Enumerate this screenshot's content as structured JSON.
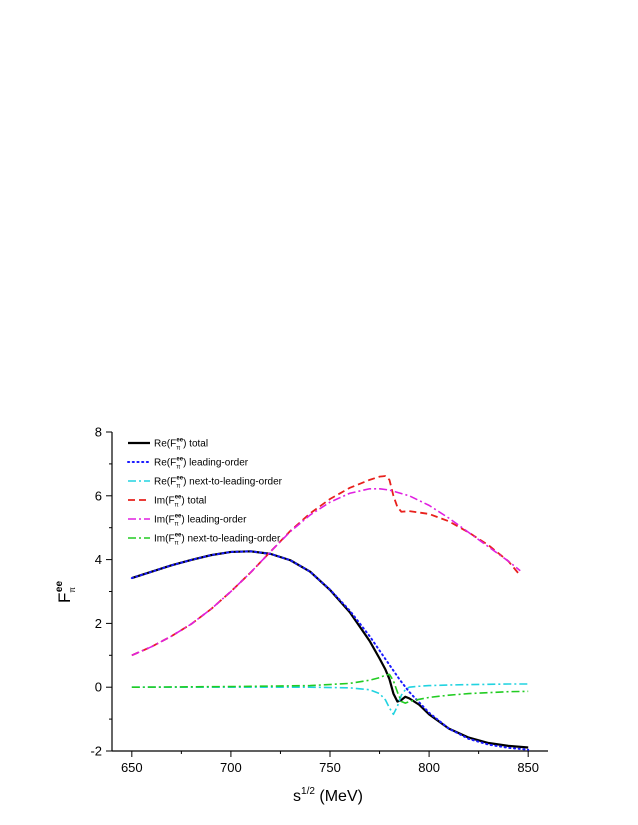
{
  "chart_data": {
    "type": "line",
    "xlabel": {
      "base": "s",
      "sup": "1/2",
      "rest": " (MeV)"
    },
    "ylabel": {
      "base": "F",
      "sup": "ee",
      "sub": "π"
    },
    "xlim": [
      640,
      860
    ],
    "ylim": [
      -2,
      8
    ],
    "xticks": [
      650,
      700,
      750,
      800,
      850
    ],
    "yticks": [
      -2,
      0,
      2,
      4,
      6,
      8
    ],
    "grid": false,
    "legend_position": "top-left",
    "series": [
      {
        "name": "Re(F_π^ee) total",
        "legend": {
          "prefix": "Re(F",
          "sup": "ee",
          "sub": "π",
          "suffix": ") total"
        },
        "color": "#000000",
        "style": "solid",
        "x": [
          650,
          660,
          670,
          680,
          690,
          700,
          710,
          720,
          730,
          740,
          750,
          760,
          770,
          775,
          778,
          780,
          782,
          784,
          786,
          788,
          790,
          795,
          800,
          810,
          820,
          830,
          840,
          850
        ],
        "y": [
          3.42,
          3.62,
          3.82,
          3.99,
          4.14,
          4.24,
          4.26,
          4.18,
          3.98,
          3.62,
          3.05,
          2.35,
          1.45,
          0.9,
          0.55,
          0.25,
          -0.2,
          -0.45,
          -0.4,
          -0.3,
          -0.35,
          -0.55,
          -0.85,
          -1.3,
          -1.58,
          -1.75,
          -1.84,
          -1.89
        ]
      },
      {
        "name": "Re(F_π^ee) leading-order",
        "legend": {
          "prefix": "Re(F",
          "sup": "ee",
          "sub": "π",
          "suffix": ") leading-order"
        },
        "color": "#1a1aff",
        "style": "dotted",
        "x": [
          650,
          660,
          670,
          680,
          690,
          700,
          710,
          720,
          730,
          740,
          750,
          760,
          770,
          775,
          780,
          785,
          790,
          800,
          810,
          820,
          830,
          840,
          850
        ],
        "y": [
          3.42,
          3.62,
          3.82,
          3.99,
          4.14,
          4.24,
          4.26,
          4.18,
          3.98,
          3.62,
          3.06,
          2.4,
          1.6,
          1.15,
          0.7,
          0.25,
          -0.15,
          -0.8,
          -1.3,
          -1.62,
          -1.8,
          -1.9,
          -1.96
        ]
      },
      {
        "name": "Re(F_π^ee) next-to-leading-order",
        "legend": {
          "prefix": "Re(F",
          "sup": "ee",
          "sub": "π",
          "suffix": ") next-to-leading-order"
        },
        "color": "#22d3e0",
        "style": "dashdot",
        "x": [
          650,
          700,
          740,
          760,
          770,
          775,
          778,
          780,
          782,
          784,
          786,
          788,
          790,
          795,
          800,
          810,
          820,
          830,
          840,
          850
        ],
        "y": [
          0.0,
          0.0,
          0.0,
          -0.02,
          -0.08,
          -0.2,
          -0.4,
          -0.65,
          -0.85,
          -0.6,
          -0.25,
          -0.08,
          0.0,
          0.03,
          0.05,
          0.07,
          0.08,
          0.09,
          0.1,
          0.1
        ]
      },
      {
        "name": "Im(F_π^ee) total",
        "legend": {
          "prefix": "Im(F",
          "sup": "ee",
          "sub": "π",
          "suffix": ") total"
        },
        "color": "#e8201c",
        "style": "dashed",
        "x": [
          650,
          660,
          670,
          680,
          690,
          700,
          710,
          720,
          730,
          740,
          750,
          760,
          770,
          775,
          778,
          780,
          782,
          784,
          786,
          790,
          800,
          810,
          820,
          830,
          840,
          846
        ],
        "y": [
          1.0,
          1.27,
          1.6,
          1.98,
          2.45,
          3.0,
          3.6,
          4.25,
          4.9,
          5.45,
          5.9,
          6.25,
          6.5,
          6.6,
          6.62,
          6.5,
          6.0,
          5.65,
          5.5,
          5.52,
          5.43,
          5.2,
          4.85,
          4.45,
          3.95,
          3.5
        ]
      },
      {
        "name": "Im(F_π^ee) leading-order",
        "legend": {
          "prefix": "Im(F",
          "sup": "ee",
          "sub": "π",
          "suffix": ") leading-order"
        },
        "color": "#e020e0",
        "style": "dashdot",
        "x": [
          650,
          660,
          670,
          680,
          690,
          700,
          710,
          720,
          730,
          740,
          750,
          760,
          770,
          775,
          780,
          790,
          800,
          810,
          820,
          830,
          840,
          846
        ],
        "y": [
          1.0,
          1.27,
          1.6,
          1.98,
          2.45,
          3.0,
          3.6,
          4.25,
          4.88,
          5.4,
          5.8,
          6.08,
          6.22,
          6.22,
          6.18,
          6.0,
          5.7,
          5.3,
          4.85,
          4.4,
          3.95,
          3.65
        ]
      },
      {
        "name": "Im(F_π^ee) next-to-leading-order",
        "legend": {
          "prefix": "Im(F",
          "sup": "ee",
          "sub": "π",
          "suffix": ") next-to-leading-order"
        },
        "color": "#22cc22",
        "style": "dashdot",
        "x": [
          650,
          700,
          740,
          760,
          770,
          775,
          778,
          780,
          782,
          784,
          786,
          788,
          790,
          795,
          800,
          810,
          820,
          830,
          840,
          850
        ],
        "y": [
          0.0,
          0.02,
          0.05,
          0.12,
          0.22,
          0.3,
          0.38,
          0.4,
          0.2,
          -0.15,
          -0.45,
          -0.5,
          -0.45,
          -0.38,
          -0.32,
          -0.25,
          -0.2,
          -0.17,
          -0.14,
          -0.13
        ]
      }
    ]
  }
}
